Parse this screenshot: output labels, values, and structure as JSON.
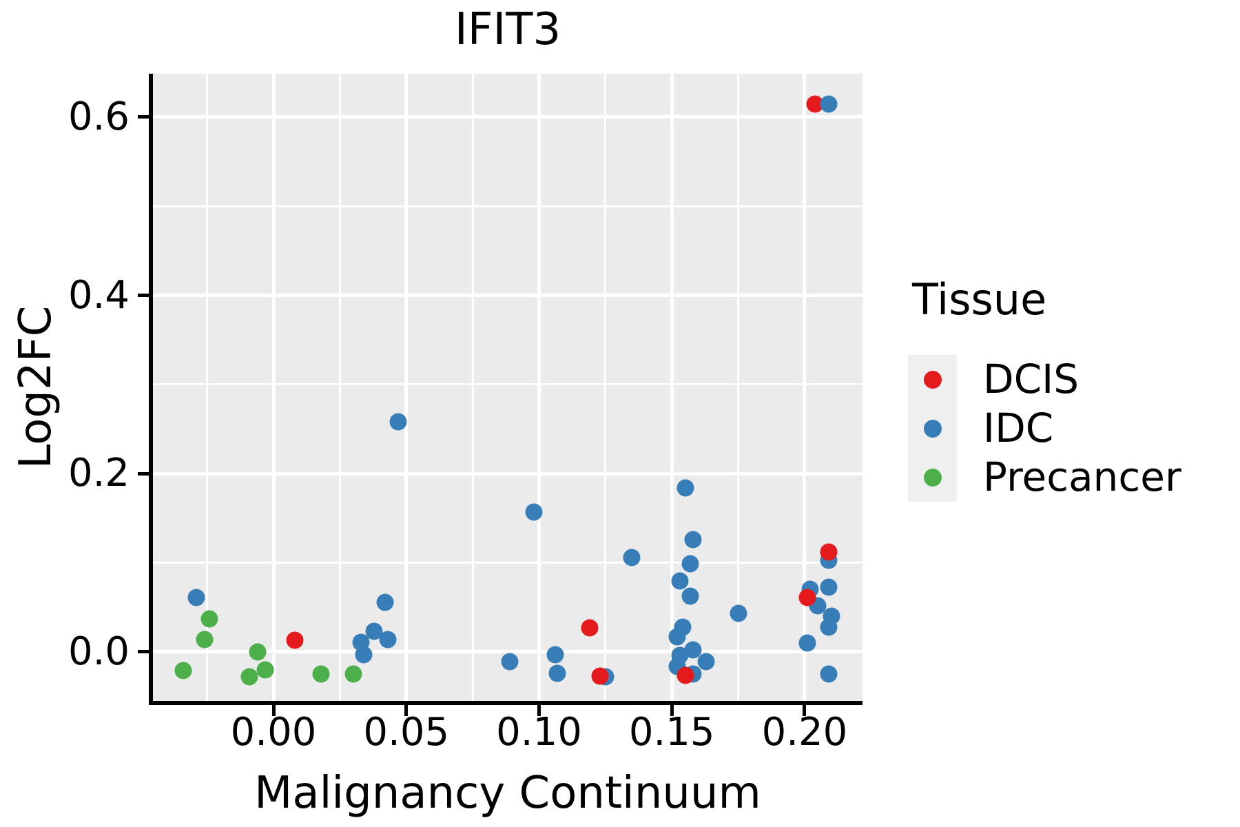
{
  "title": "IFIT3",
  "x_axis_label": "Malignancy Continuum",
  "y_axis_label": "Log2FC",
  "legend": {
    "title": "Tissue",
    "items": [
      {
        "label": "DCIS",
        "color": "#e41a1c"
      },
      {
        "label": "IDC",
        "color": "#377eb8"
      },
      {
        "label": "Precancer",
        "color": "#4daf4a"
      }
    ]
  },
  "colors": {
    "panel_background": "#ebebeb",
    "grid": "#ffffff",
    "axis": "#000000",
    "legend_key_background": "#efefef"
  },
  "chart_data": {
    "type": "scatter",
    "title": "IFIT3",
    "xlabel": "Malignancy Continuum",
    "ylabel": "Log2FC",
    "xlim": [
      -0.0454,
      0.2218
    ],
    "ylim": [
      -0.0549,
      0.6487
    ],
    "grid": true,
    "legend_position": "right",
    "x_ticks": [
      {
        "v": 0.0,
        "label": "0.00"
      },
      {
        "v": 0.05,
        "label": "0.05"
      },
      {
        "v": 0.1,
        "label": "0.10"
      },
      {
        "v": 0.15,
        "label": "0.15"
      },
      {
        "v": 0.2,
        "label": "0.20"
      }
    ],
    "y_ticks": [
      {
        "v": 0.0,
        "label": "0.0"
      },
      {
        "v": 0.2,
        "label": "0.2"
      },
      {
        "v": 0.4,
        "label": "0.4"
      },
      {
        "v": 0.6,
        "label": "0.6"
      }
    ],
    "x_minor_ticks": [
      -0.025,
      0.025,
      0.075,
      0.125,
      0.175
    ],
    "y_minor_ticks": [
      0.1,
      0.3,
      0.5
    ],
    "series": [
      {
        "name": "Precancer",
        "color": "#4daf4a",
        "points": [
          [
            -0.034,
            -0.021
          ],
          [
            -0.026,
            0.014
          ],
          [
            -0.024,
            0.037
          ],
          [
            -0.009,
            -0.028
          ],
          [
            -0.006,
            0.0
          ],
          [
            -0.003,
            -0.02
          ],
          [
            0.018,
            -0.025
          ],
          [
            0.03,
            -0.025
          ]
        ]
      },
      {
        "name": "IDC",
        "color": "#377eb8",
        "points": [
          [
            -0.029,
            0.061
          ],
          [
            0.033,
            0.011
          ],
          [
            0.034,
            -0.003
          ],
          [
            0.038,
            0.023
          ],
          [
            0.042,
            0.056
          ],
          [
            0.043,
            0.014
          ],
          [
            0.047,
            0.258
          ],
          [
            0.089,
            -0.011
          ],
          [
            0.098,
            0.157
          ],
          [
            0.106,
            -0.003
          ],
          [
            0.107,
            -0.024
          ],
          [
            0.125,
            -0.028
          ],
          [
            0.135,
            0.106
          ],
          [
            0.152,
            0.017
          ],
          [
            0.152,
            -0.016
          ],
          [
            0.153,
            0.08
          ],
          [
            0.153,
            -0.004
          ],
          [
            0.154,
            0.028
          ],
          [
            0.155,
            0.184
          ],
          [
            0.157,
            0.099
          ],
          [
            0.157,
            0.063
          ],
          [
            0.158,
            0.126
          ],
          [
            0.158,
            0.002
          ],
          [
            0.158,
            -0.025
          ],
          [
            0.163,
            -0.011
          ],
          [
            0.175,
            0.043
          ],
          [
            0.201,
            0.01
          ],
          [
            0.202,
            0.07
          ],
          [
            0.205,
            0.052
          ],
          [
            0.209,
            0.103
          ],
          [
            0.209,
            0.073
          ],
          [
            0.21,
            0.04
          ],
          [
            0.209,
            0.028
          ],
          [
            0.209,
            -0.025
          ]
        ],
        "points_on_top": [
          [
            0.209,
            0.615
          ]
        ]
      },
      {
        "name": "DCIS",
        "color": "#e41a1c",
        "points": [
          [
            0.008,
            0.013
          ],
          [
            0.119,
            0.027
          ],
          [
            0.123,
            -0.027
          ],
          [
            0.155,
            -0.026
          ],
          [
            0.201,
            0.061
          ],
          [
            0.209,
            0.112
          ],
          [
            0.204,
            0.615
          ]
        ]
      }
    ]
  }
}
